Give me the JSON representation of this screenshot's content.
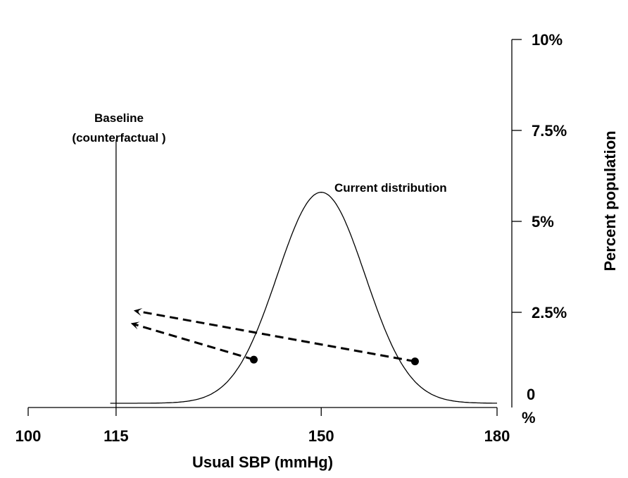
{
  "chart_data": {
    "type": "line",
    "title": "",
    "xlabel": "Usual SBP (mmHg)",
    "ylabel": "Percent population",
    "xlim": [
      100,
      180
    ],
    "ylim": [
      0,
      10
    ],
    "x_ticks": [
      {
        "value": 100,
        "label": "100"
      },
      {
        "value": 115,
        "label": "115"
      },
      {
        "value": 150,
        "label": "150"
      },
      {
        "value": 180,
        "label": "180"
      }
    ],
    "y_ticks": [
      {
        "value": 0,
        "label_top": "0",
        "label_bottom": "%"
      },
      {
        "value": 2.5,
        "label": "2.5%"
      },
      {
        "value": 5,
        "label": "5%"
      },
      {
        "value": 7.5,
        "label": "7.5%"
      },
      {
        "value": 10,
        "label": "10%"
      }
    ],
    "series": [
      {
        "name": "Current distribution",
        "distribution": "normal",
        "mean": 150,
        "sd": 7.5,
        "peak": 5.8,
        "x_range": [
          114,
          180
        ]
      }
    ],
    "baseline": {
      "x": 115,
      "y_top": 7.25,
      "label_line1": "Baseline",
      "label_line2": "(counterfactual )"
    },
    "points": [
      {
        "x": 138.5,
        "y": 1.2
      },
      {
        "x": 166,
        "y": 1.15
      }
    ],
    "arrows": [
      {
        "from": [
          166,
          1.15
        ],
        "to": [
          118,
          2.55
        ]
      },
      {
        "from": [
          138.5,
          1.2
        ],
        "to": [
          117.5,
          2.2
        ]
      }
    ],
    "grid": false
  }
}
